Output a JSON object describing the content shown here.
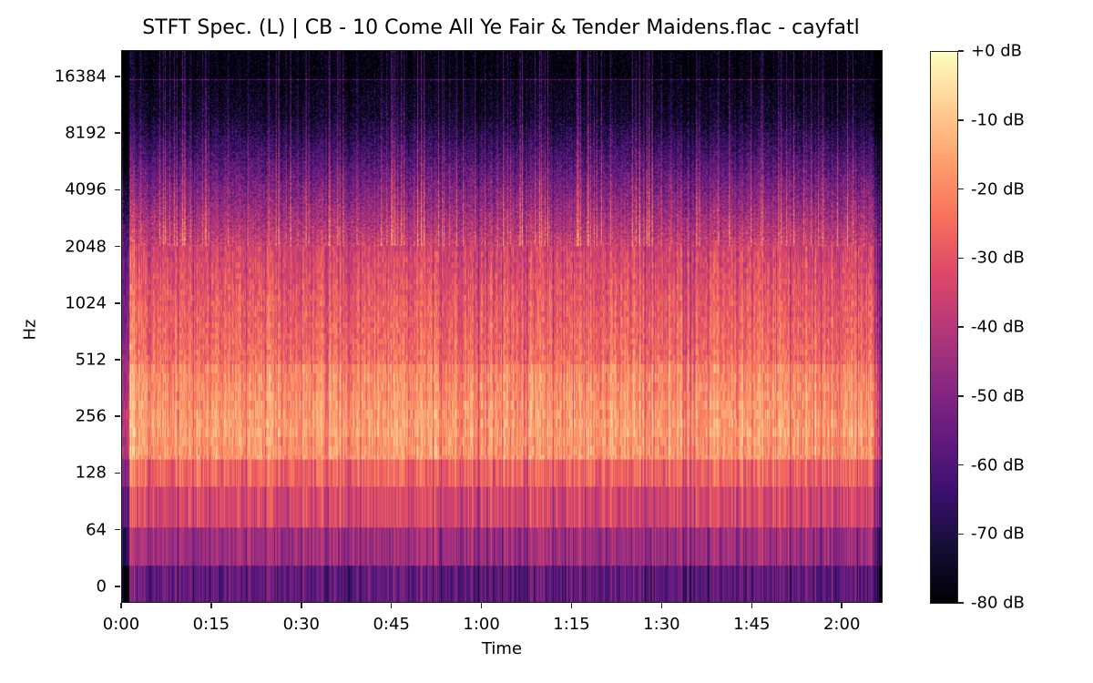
{
  "chart_data": {
    "type": "heatmap",
    "subtype": "spectrogram",
    "title": "STFT Spec. (L) | CB - 10 Come All Ye Fair & Tender Maidens.flac - cayfatl",
    "xlabel": "Time",
    "ylabel": "Hz",
    "x_scale": "time",
    "y_scale": "log2",
    "xlim_seconds": [
      0,
      127
    ],
    "x_ticks": [
      {
        "label": "0:00",
        "seconds": 0
      },
      {
        "label": "0:15",
        "seconds": 15
      },
      {
        "label": "0:30",
        "seconds": 30
      },
      {
        "label": "0:45",
        "seconds": 45
      },
      {
        "label": "1:00",
        "seconds": 60
      },
      {
        "label": "1:15",
        "seconds": 75
      },
      {
        "label": "1:30",
        "seconds": 90
      },
      {
        "label": "1:45",
        "seconds": 105
      },
      {
        "label": "2:00",
        "seconds": 120
      }
    ],
    "y_ticks": [
      {
        "label": "16384",
        "hz": 16384
      },
      {
        "label": "8192",
        "hz": 8192
      },
      {
        "label": "4096",
        "hz": 4096
      },
      {
        "label": "2048",
        "hz": 2048
      },
      {
        "label": "1024",
        "hz": 1024
      },
      {
        "label": "512",
        "hz": 512
      },
      {
        "label": "256",
        "hz": 256
      },
      {
        "label": "128",
        "hz": 128
      },
      {
        "label": "64",
        "hz": 64
      },
      {
        "label": "0",
        "hz": 0
      }
    ],
    "colorbar": {
      "colormap": "magma",
      "range_db": [
        -80,
        0
      ],
      "ticks": [
        "+0 dB",
        "-10 dB",
        "-20 dB",
        "-30 dB",
        "-40 dB",
        "-50 dB",
        "-60 dB",
        "-70 dB",
        "-80 dB"
      ],
      "tick_values": [
        0,
        -10,
        -20,
        -30,
        -40,
        -50,
        -60,
        -70,
        -80
      ]
    },
    "approx_energy_profile_db": {
      "description": "Approximate average level per frequency region read from colors",
      "bands": [
        {
          "range_hz": "0-32",
          "level_db": -55
        },
        {
          "range_hz": "32-64",
          "level_db": -45
        },
        {
          "range_hz": "64-128",
          "level_db": -33
        },
        {
          "range_hz": "128-256",
          "level_db": -20
        },
        {
          "range_hz": "256-512",
          "level_db": -15
        },
        {
          "range_hz": "512-1024",
          "level_db": -24
        },
        {
          "range_hz": "1024-2048",
          "level_db": -28
        },
        {
          "range_hz": "2048-4096",
          "level_db": -40
        },
        {
          "range_hz": "4096-8192",
          "level_db": -55
        },
        {
          "range_hz": "8192-16384",
          "level_db": -72
        },
        {
          "range_hz": "16384-22050",
          "level_db": -80
        }
      ],
      "notes": "Faint horizontal line near 16 kHz across entire duration; strong onset transient near 0:02; high-frequency content rolls off above ~8 kHz"
    }
  }
}
